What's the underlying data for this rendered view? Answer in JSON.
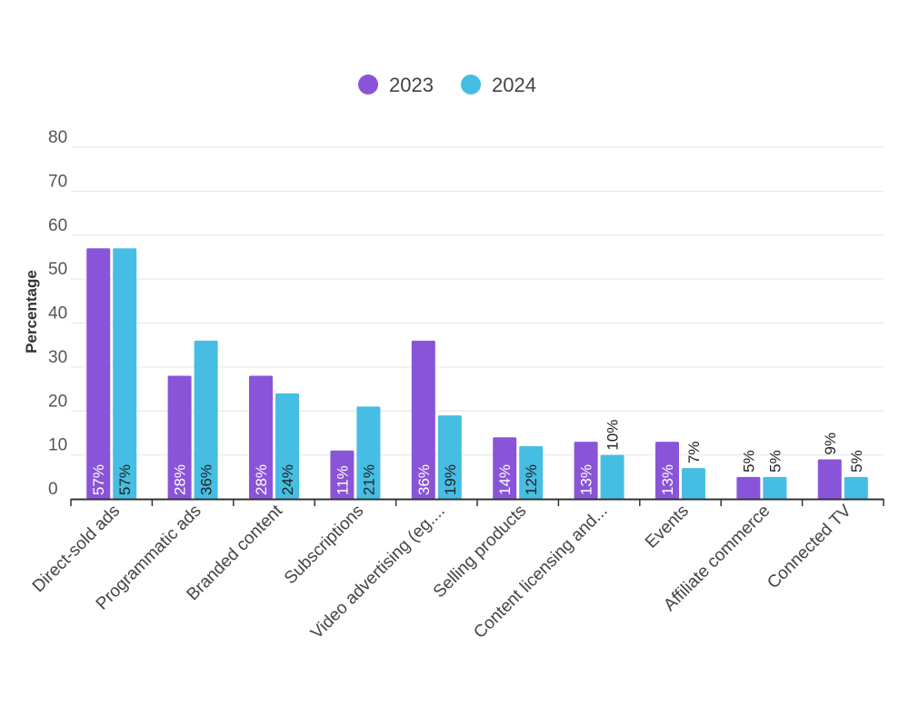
{
  "chart_data": {
    "type": "bar",
    "title": "",
    "xlabel": "",
    "ylabel": "Percentage",
    "ylim": [
      0,
      80
    ],
    "yticks": [
      0,
      10,
      20,
      30,
      40,
      50,
      60,
      70,
      80
    ],
    "grid": true,
    "legend_position": "top-center",
    "categories": [
      "Direct-sold ads",
      "Programmatic ads",
      "Branded content",
      "Subscriptions",
      "Video advertising (eg....",
      "Selling products",
      "Content licensing and...",
      "Events",
      "Affiliate commerce",
      "Connected TV"
    ],
    "series": [
      {
        "name": "2023",
        "color": "#8a54d8",
        "values": [
          57,
          28,
          28,
          11,
          36,
          14,
          13,
          13,
          5,
          9
        ]
      },
      {
        "name": "2024",
        "color": "#46bde3",
        "values": [
          57,
          36,
          24,
          21,
          19,
          12,
          10,
          7,
          5,
          5
        ]
      }
    ],
    "value_suffix": "%"
  }
}
